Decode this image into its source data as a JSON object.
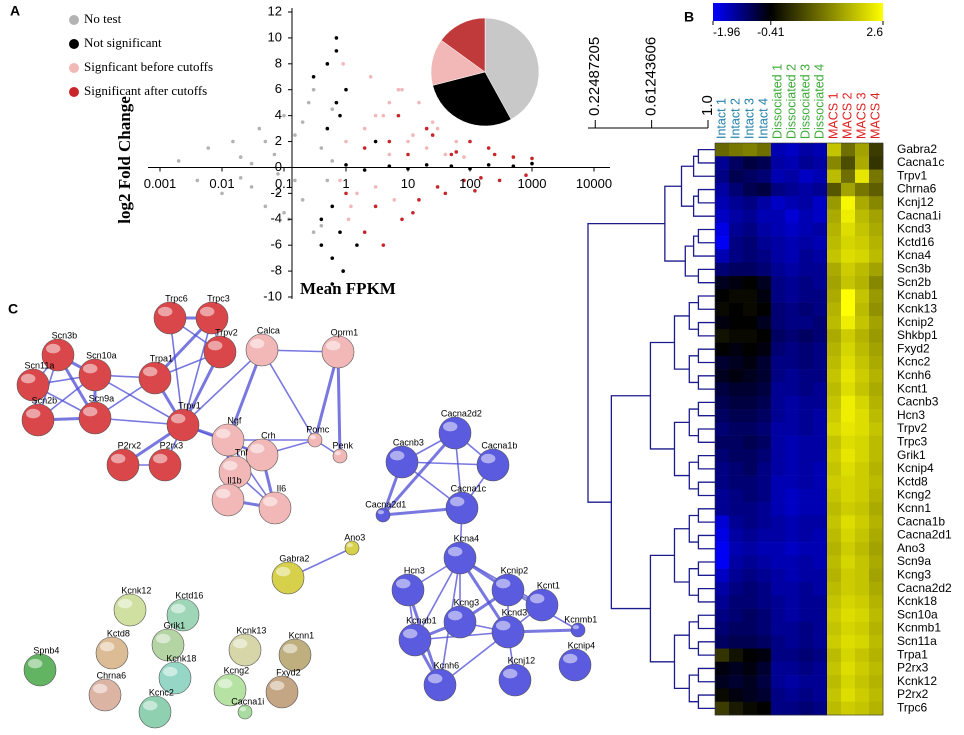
{
  "chart_data": [
    {
      "type": "scatter",
      "panel": "A",
      "xlabel": "Mean FPKM",
      "ylabel": "log2 Fold Change",
      "xscale": "log",
      "xlim": [
        0.001,
        10000
      ],
      "ylim": [
        -10,
        12
      ],
      "xticks": [
        0.001,
        0.01,
        0.1,
        1,
        10,
        100,
        1000,
        10000
      ],
      "yticks": [
        -10,
        -8,
        -6,
        -4,
        -2,
        0,
        2,
        4,
        6,
        8,
        10,
        12
      ],
      "series": [
        {
          "name": "No test",
          "color": "#b3b3b3",
          "x": [
            0.002,
            0.004,
            0.006,
            0.01,
            0.015,
            0.02,
            0.03,
            0.04,
            0.05,
            0.07,
            0.08,
            0.1,
            0.12,
            0.15,
            0.2,
            0.25,
            0.3,
            0.4,
            0.5,
            0.6,
            0.02,
            0.05,
            0.1,
            0.2,
            0.3,
            0.03,
            0.08,
            0.15,
            0.4,
            0.6
          ],
          "y": [
            0.5,
            -1,
            1.5,
            -2,
            2,
            0.8,
            -1.5,
            3,
            -3,
            1,
            -0.5,
            4,
            -4,
            2.5,
            -2.5,
            5,
            -5,
            1.5,
            -1,
            0.5,
            -0.8,
            2,
            -3.5,
            3.5,
            6,
            0.3,
            -2,
            -1,
            -4.5,
            4.5
          ]
        },
        {
          "name": "Not significant",
          "color": "#000000",
          "x": [
            0.3,
            0.4,
            0.5,
            0.6,
            0.7,
            0.8,
            1,
            2,
            5,
            10,
            20,
            50,
            100,
            200,
            500,
            1000,
            0.5,
            0.6,
            0.7,
            0.9,
            0.4,
            0.8,
            1,
            1.5,
            3,
            0.6,
            0.7
          ],
          "y": [
            7,
            -6,
            8,
            -7,
            5,
            -5,
            0.2,
            -0.2,
            0.1,
            -0.1,
            0.2,
            0.1,
            -0.1,
            0.2,
            0.1,
            0.3,
            3,
            -3,
            10,
            -8,
            -4,
            4,
            6,
            -6,
            2,
            -9,
            9
          ]
        },
        {
          "name": "Signficant before cutoffs",
          "color": "#f2b8b8",
          "x": [
            0.8,
            1,
            1.5,
            2,
            3,
            4,
            5,
            6,
            8,
            10,
            15,
            20,
            30,
            40,
            60,
            80,
            1.2,
            2.5,
            5,
            0.9,
            1.1,
            3,
            7,
            12,
            25
          ],
          "y": [
            -1,
            2,
            -2,
            3,
            -1.5,
            4,
            1,
            -2.5,
            6,
            2,
            5,
            1.5,
            3,
            1,
            2,
            0.8,
            -3,
            7,
            5,
            8,
            -4,
            4,
            6,
            2.5,
            3.5
          ]
        },
        {
          "name": "Significant after cutoffs",
          "color": "#c8262b",
          "x": [
            1,
            2,
            3,
            5,
            8,
            10,
            15,
            20,
            30,
            50,
            80,
            100,
            150,
            200,
            300,
            500,
            800,
            1000,
            2,
            4,
            7,
            12,
            25,
            40,
            60,
            120,
            250
          ],
          "y": [
            -2,
            1.5,
            -3,
            2,
            -4,
            1,
            -2.5,
            3,
            -1.5,
            1,
            -1,
            2,
            -0.8,
            1.5,
            -1,
            0.8,
            -0.6,
            0.7,
            -5,
            -6,
            4,
            -3.5,
            2.5,
            -2,
            1.2,
            -1.8,
            1
          ]
        }
      ]
    },
    {
      "type": "pie",
      "values": [
        42,
        29,
        14,
        15
      ],
      "colors": [
        "#c8c8c8",
        "#000000",
        "#f2b8b8",
        "#c0393b"
      ]
    },
    {
      "type": "heatmap",
      "panel": "B",
      "columns": [
        "Intact 1",
        "Intact 2",
        "Intact 3",
        "Intact 4",
        "Dissociated 1",
        "Dissociated 2",
        "Dissociated 3",
        "Dissociated 4",
        "MACS 1",
        "MACS 2",
        "MACS 3",
        "MACS 4"
      ],
      "column_colors": [
        "#1f7fa8",
        "#1f7fa8",
        "#1f7fa8",
        "#1f7fa8",
        "#3aaa35",
        "#3aaa35",
        "#3aaa35",
        "#3aaa35",
        "#e02020",
        "#e02020",
        "#e02020",
        "#e02020"
      ],
      "rows": [
        "Gabra2",
        "Cacna1c",
        "Trpv1",
        "Chrna6",
        "Kcnj12",
        "Cacna1i",
        "Kcnd3",
        "Kctd16",
        "Kcna4",
        "Scn3b",
        "Scn2b",
        "Kcnab1",
        "Kcnk13",
        "Kcnip2",
        "Shkbp1",
        "Fxyd2",
        "Kcnc2",
        "Kcnh6",
        "Kcnt1",
        "Cacnb3",
        "Hcn3",
        "Trpv2",
        "Trpc3",
        "Grik1",
        "Kcnip4",
        "Kctd8",
        "Kcng2",
        "Kcnn1",
        "Cacna1b",
        "Cacna2d1",
        "Ano3",
        "Scn9a",
        "Kcng3",
        "Cacna2d2",
        "Kcnk18",
        "Scn10a",
        "Kcnmb1",
        "Scn11a",
        "Trpa1",
        "P2rx3",
        "Kcnk12",
        "P2rx2",
        "Trpc6"
      ],
      "values": [
        [
          0.8,
          1.0,
          1.1,
          0.9,
          -1.5,
          -1.6,
          -1.4,
          -1.5,
          1.9,
          0.9,
          1.5,
          0.3
        ],
        [
          -1.3,
          -1.0,
          -0.8,
          -0.9,
          -1.4,
          -1.5,
          -1.3,
          -1.4,
          1.2,
          0.5,
          1.6,
          0.2
        ],
        [
          -1.2,
          -0.9,
          -1.0,
          -1.1,
          -1.5,
          -1.4,
          -1.6,
          -1.5,
          1.8,
          0.9,
          2.3,
          1.0
        ],
        [
          -1.4,
          -1.1,
          -0.9,
          -0.8,
          -1.2,
          -1.3,
          -1.4,
          -1.3,
          0.6,
          1.5,
          1.0,
          0.7
        ],
        [
          -1.5,
          -1.3,
          -1.2,
          -1.4,
          -1.6,
          -1.5,
          -1.4,
          -1.6,
          1.4,
          2.5,
          1.6,
          1.2
        ],
        [
          -1.6,
          -1.4,
          -1.3,
          -1.5,
          -1.5,
          -1.7,
          -1.5,
          -1.6,
          1.6,
          2.4,
          1.8,
          1.5
        ],
        [
          -1.8,
          -1.3,
          -1.2,
          -1.4,
          -1.5,
          -1.6,
          -1.5,
          -1.4,
          1.7,
          2.2,
          1.9,
          1.6
        ],
        [
          -1.9,
          -1.2,
          -1.1,
          -1.3,
          -1.4,
          -1.5,
          -1.4,
          -1.5,
          1.8,
          2.1,
          2.0,
          1.7
        ],
        [
          -1.5,
          -1.2,
          -1.1,
          -1.2,
          -1.4,
          -1.5,
          -1.3,
          -1.4,
          1.9,
          2.2,
          2.1,
          1.8
        ],
        [
          -1.1,
          -1.0,
          -1.0,
          -1.1,
          -1.3,
          -1.4,
          -1.3,
          -1.3,
          1.6,
          2.0,
          1.8,
          1.5
        ],
        [
          -0.6,
          -0.5,
          -0.4,
          -0.6,
          -1.2,
          -1.3,
          -1.2,
          -1.3,
          1.5,
          1.9,
          1.7,
          1.2
        ],
        [
          -0.4,
          -0.3,
          -0.3,
          -0.5,
          -1.2,
          -1.3,
          -1.2,
          -1.2,
          1.6,
          2.6,
          1.9,
          1.4
        ],
        [
          -0.3,
          -0.4,
          -0.3,
          -0.4,
          -1.1,
          -1.2,
          -1.1,
          -1.2,
          1.7,
          2.6,
          1.8,
          1.3
        ],
        [
          -0.5,
          -0.4,
          -0.4,
          -0.6,
          -1.1,
          -1.2,
          -1.2,
          -1.1,
          1.8,
          2.4,
          1.9,
          1.5
        ],
        [
          -0.2,
          -0.3,
          -0.3,
          -0.4,
          -1.0,
          -1.1,
          -1.0,
          -1.1,
          1.6,
          2.0,
          1.7,
          1.4
        ],
        [
          -0.4,
          -0.5,
          -0.4,
          -0.5,
          -1.1,
          -1.2,
          -1.1,
          -1.2,
          1.7,
          2.1,
          1.8,
          1.5
        ],
        [
          -0.7,
          -0.6,
          -0.5,
          -0.7,
          -1.2,
          -1.2,
          -1.1,
          -1.2,
          1.8,
          2.2,
          1.9,
          1.6
        ],
        [
          -0.6,
          -0.5,
          -0.6,
          -0.7,
          -1.2,
          -1.3,
          -1.2,
          -1.2,
          1.9,
          2.3,
          2.0,
          1.7
        ],
        [
          -0.8,
          -0.7,
          -0.7,
          -0.8,
          -1.3,
          -1.3,
          -1.2,
          -1.3,
          1.8,
          2.2,
          1.9,
          1.6
        ],
        [
          -0.9,
          -0.8,
          -0.8,
          -0.9,
          -1.3,
          -1.4,
          -1.3,
          -1.3,
          1.9,
          2.4,
          2.1,
          1.7
        ],
        [
          -1.0,
          -0.9,
          -0.9,
          -1.0,
          -1.3,
          -1.4,
          -1.3,
          -1.4,
          2.0,
          2.4,
          2.2,
          1.8
        ],
        [
          -1.1,
          -1.0,
          -1.0,
          -1.1,
          -1.4,
          -1.4,
          -1.3,
          -1.4,
          2.1,
          2.3,
          2.2,
          1.9
        ],
        [
          -1.0,
          -1.0,
          -0.9,
          -1.0,
          -1.4,
          -1.5,
          -1.4,
          -1.4,
          1.9,
          2.2,
          2.1,
          1.8
        ],
        [
          -1.1,
          -1.0,
          -1.0,
          -1.1,
          -1.4,
          -1.5,
          -1.4,
          -1.4,
          2.0,
          2.3,
          2.1,
          1.8
        ],
        [
          -1.2,
          -1.1,
          -1.0,
          -1.2,
          -1.4,
          -1.5,
          -1.4,
          -1.5,
          1.9,
          2.2,
          2.0,
          1.7
        ],
        [
          -1.2,
          -1.1,
          -1.1,
          -1.2,
          -1.5,
          -1.5,
          -1.4,
          -1.5,
          2.0,
          2.1,
          2.0,
          1.8
        ],
        [
          -1.3,
          -1.2,
          -1.1,
          -1.2,
          -1.5,
          -1.6,
          -1.5,
          -1.5,
          1.9,
          2.1,
          2.0,
          1.7
        ],
        [
          -1.3,
          -1.2,
          -1.2,
          -1.3,
          -1.5,
          -1.6,
          -1.5,
          -1.5,
          1.8,
          2.0,
          1.9,
          1.6
        ],
        [
          -1.7,
          -1.3,
          -1.2,
          -1.3,
          -1.4,
          -1.5,
          -1.4,
          -1.4,
          1.9,
          2.2,
          2.0,
          1.7
        ],
        [
          -1.8,
          -1.4,
          -1.3,
          -1.4,
          -1.4,
          -1.5,
          -1.4,
          -1.5,
          1.8,
          2.1,
          1.9,
          1.6
        ],
        [
          -1.9,
          -1.5,
          -1.4,
          -1.5,
          -1.5,
          -1.6,
          -1.5,
          -1.5,
          1.7,
          2.0,
          1.8,
          1.5
        ],
        [
          -1.9,
          -1.4,
          -1.3,
          -1.4,
          -1.5,
          -1.5,
          -1.4,
          -1.5,
          1.8,
          2.1,
          1.9,
          1.6
        ],
        [
          -1.6,
          -1.3,
          -1.2,
          -1.3,
          -1.4,
          -1.5,
          -1.4,
          -1.4,
          1.7,
          2.0,
          1.9,
          1.5
        ],
        [
          -1.4,
          -1.2,
          -1.1,
          -1.2,
          -1.4,
          -1.4,
          -1.3,
          -1.4,
          1.8,
          2.0,
          1.9,
          1.6
        ],
        [
          -1.3,
          -1.1,
          -1.1,
          -1.2,
          -1.3,
          -1.4,
          -1.3,
          -1.3,
          1.9,
          2.1,
          2.0,
          1.7
        ],
        [
          -1.2,
          -1.1,
          -1.0,
          -1.1,
          -1.3,
          -1.4,
          -1.3,
          -1.3,
          2.0,
          2.2,
          2.1,
          1.8
        ],
        [
          -1.1,
          -1.0,
          -1.0,
          -1.1,
          -1.3,
          -1.3,
          -1.2,
          -1.3,
          1.9,
          2.1,
          2.0,
          1.7
        ],
        [
          -1.0,
          -0.9,
          -0.9,
          -1.0,
          -1.2,
          -1.3,
          -1.2,
          -1.3,
          2.0,
          2.2,
          2.1,
          1.8
        ],
        [
          0.2,
          -0.2,
          -0.4,
          -0.5,
          -1.2,
          -1.2,
          -1.1,
          -1.2,
          1.8,
          2.1,
          1.9,
          1.7
        ],
        [
          -0.5,
          -0.6,
          -0.5,
          -0.7,
          -1.3,
          -1.3,
          -1.2,
          -1.3,
          1.9,
          2.2,
          2.0,
          1.8
        ],
        [
          -0.6,
          -0.7,
          -0.6,
          -0.8,
          -1.3,
          -1.4,
          -1.3,
          -1.3,
          1.8,
          2.1,
          1.9,
          1.7
        ],
        [
          -0.3,
          -0.5,
          -0.6,
          -0.7,
          -1.2,
          -1.3,
          -1.2,
          -1.3,
          1.9,
          2.2,
          2.0,
          1.8
        ],
        [
          0.3,
          -0.1,
          -0.3,
          -0.4,
          -1.2,
          -1.2,
          -1.1,
          -1.2,
          1.8,
          2.0,
          1.9,
          1.7
        ]
      ],
      "colorbar": {
        "ticks": [
          -1.96,
          -0.41,
          2.6
        ],
        "colors": [
          "#0000ff",
          "#000000",
          "#ffff00"
        ]
      },
      "dendrogram": {
        "xlim": [
          0.175,
          1
        ],
        "xticks": [
          0.22487205,
          0.61243606,
          {
            "value": 1,
            "label": "1.0"
          }
        ]
      }
    }
  ],
  "network": {
    "panel": "C",
    "nodes": [
      {
        "label": "Trpc6",
        "color": "#d9474a"
      },
      {
        "label": "Trpc3",
        "color": "#d9474a"
      },
      {
        "label": "Trpv2",
        "color": "#d9474a"
      },
      {
        "label": "Scn3b",
        "color": "#d9474a"
      },
      {
        "label": "Scn10a",
        "color": "#d9474a"
      },
      {
        "label": "Scn11a",
        "color": "#d9474a"
      },
      {
        "label": "Trpa1",
        "color": "#d9474a"
      },
      {
        "label": "Calca",
        "color": "#f2b8b8"
      },
      {
        "label": "Oprm1",
        "color": "#f2b8b8"
      },
      {
        "label": "Scn2b",
        "color": "#d9474a"
      },
      {
        "label": "Scn9a",
        "color": "#d9474a"
      },
      {
        "label": "Trpv1",
        "color": "#d9474a"
      },
      {
        "label": "Ngf",
        "color": "#f2b8b8"
      },
      {
        "label": "Pomc",
        "color": "#f2b8b8"
      },
      {
        "label": "Penk",
        "color": "#f2b8b8"
      },
      {
        "label": "P2rx2",
        "color": "#d9474a"
      },
      {
        "label": "P2rx3",
        "color": "#d9474a"
      },
      {
        "label": "Crh",
        "color": "#f2b8b8"
      },
      {
        "label": "Tnf",
        "color": "#f2b8b8"
      },
      {
        "label": "Il1b",
        "color": "#f2b8b8"
      },
      {
        "label": "Il6",
        "color": "#f2b8b8"
      },
      {
        "label": "Cacna2d2",
        "color": "#5b5be0"
      },
      {
        "label": "Cacnb3",
        "color": "#5b5be0"
      },
      {
        "label": "Cacna1b",
        "color": "#5b5be0"
      },
      {
        "label": "Cacna2d1",
        "color": "#5b5be0"
      },
      {
        "label": "Cacna1c",
        "color": "#5b5be0"
      },
      {
        "label": "Kcna4",
        "color": "#5b5be0"
      },
      {
        "label": "Hcn3",
        "color": "#5b5be0"
      },
      {
        "label": "Kcnip2",
        "color": "#5b5be0"
      },
      {
        "label": "Kcng3",
        "color": "#5b5be0"
      },
      {
        "label": "Kcnt1",
        "color": "#5b5be0"
      },
      {
        "label": "Kcnab1",
        "color": "#5b5be0"
      },
      {
        "label": "Kcnd3",
        "color": "#5b5be0"
      },
      {
        "label": "Kcnmb1",
        "color": "#5b5be0"
      },
      {
        "label": "Kcnh6",
        "color": "#5b5be0"
      },
      {
        "label": "Kcnj12",
        "color": "#5b5be0"
      },
      {
        "label": "Kcnip4",
        "color": "#5b5be0"
      },
      {
        "label": "Gabra2",
        "color": "#d6d04a"
      },
      {
        "label": "Ano3",
        "color": "#d6d04a"
      },
      {
        "label": "Kcnk12",
        "color": "#cfe0a0"
      },
      {
        "label": "Kctd16",
        "color": "#9fd6b8"
      },
      {
        "label": "Kctd8",
        "color": "#dcbc94"
      },
      {
        "label": "Grik1",
        "color": "#b4d4a4"
      },
      {
        "label": "Kcnk13",
        "color": "#d6d6a8"
      },
      {
        "label": "Kcnn1",
        "color": "#bfae7e"
      },
      {
        "label": "Spnb4",
        "color": "#62b462"
      },
      {
        "label": "Kcnk18",
        "color": "#96d6c6"
      },
      {
        "label": "Kcng2",
        "color": "#b6e2a4"
      },
      {
        "label": "Fxyd2",
        "color": "#c4a684"
      },
      {
        "label": "Chrna6",
        "color": "#dcb4a4"
      },
      {
        "label": "Kcnc2",
        "color": "#8ed0b0"
      },
      {
        "label": "Cacna1i",
        "color": "#a8dca0"
      }
    ]
  }
}
